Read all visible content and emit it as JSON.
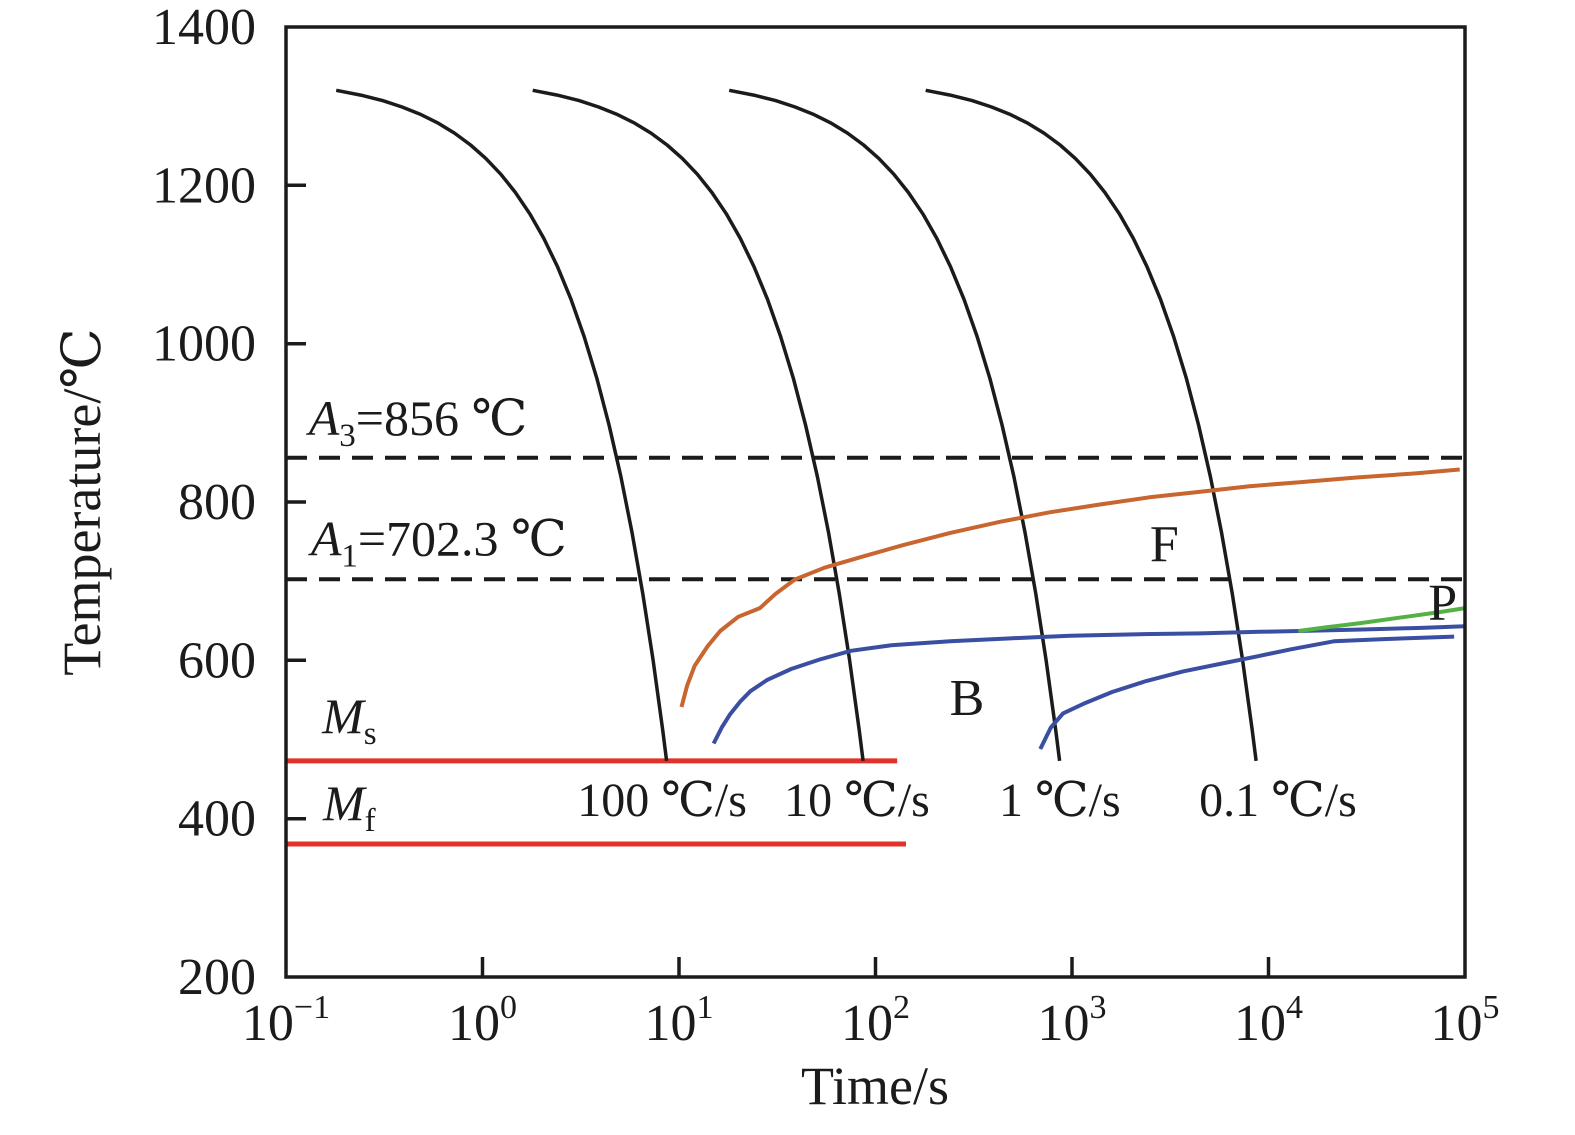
{
  "chart_data": {
    "type": "line",
    "title": "",
    "xlabel": "Time/s",
    "ylabel": "Temperature/℃",
    "x_scale": "log",
    "x_range": [
      0.1,
      100000
    ],
    "y_range": [
      200,
      1400
    ],
    "grid": false,
    "legend": "none",
    "x_ticks": [
      {
        "value": 0.1,
        "label": [
          {
            "t": "10"
          },
          {
            "t": "−1",
            "sup": true
          }
        ]
      },
      {
        "value": 1,
        "label": [
          {
            "t": "10"
          },
          {
            "t": "0",
            "sup": true
          }
        ]
      },
      {
        "value": 10,
        "label": [
          {
            "t": "10"
          },
          {
            "t": "1",
            "sup": true
          }
        ]
      },
      {
        "value": 100,
        "label": [
          {
            "t": "10"
          },
          {
            "t": "2",
            "sup": true
          }
        ]
      },
      {
        "value": 1000,
        "label": [
          {
            "t": "10"
          },
          {
            "t": "3",
            "sup": true
          }
        ]
      },
      {
        "value": 10000,
        "label": [
          {
            "t": "10"
          },
          {
            "t": "4",
            "sup": true
          }
        ]
      },
      {
        "value": 100000,
        "label": [
          {
            "t": "10"
          },
          {
            "t": "5",
            "sup": true
          }
        ]
      }
    ],
    "y_ticks": [
      1400,
      1200,
      1000,
      800,
      600,
      400,
      200
    ],
    "colors": {
      "axis": "#1b1b1b",
      "cooling_curve": "#1b1b1b",
      "dashed_line": "#1b1b1b",
      "ferrite": "#c9652f",
      "bainite": "#3b4fa2",
      "pearlite": "#54b245",
      "martensite_line": "#e23128"
    },
    "reference_lines": [
      {
        "name": "A3",
        "T": 856,
        "style": "dashed",
        "color_key": "dashed_line",
        "t_start": 0.1,
        "t_end": 100000,
        "label": [
          {
            "t": "A",
            "i": true
          },
          {
            "t": "3",
            "sub": true
          },
          {
            "t": "=856 ℃"
          }
        ],
        "label_pos": {
          "t": 0.47,
          "T": 906
        }
      },
      {
        "name": "A1",
        "T": 702.3,
        "style": "dashed",
        "color_key": "dashed_line",
        "t_start": 0.1,
        "t_end": 100000,
        "label": [
          {
            "t": "A",
            "i": true
          },
          {
            "t": "1",
            "sub": true
          },
          {
            "t": "=702.3 ℃"
          }
        ],
        "label_pos": {
          "t": 0.6,
          "T": 754
        }
      },
      {
        "name": "Ms",
        "T": 473,
        "style": "solid",
        "color_key": "martensite_line",
        "t_start": 0.1,
        "t_end": 129,
        "label": [
          {
            "t": "M",
            "i": true
          },
          {
            "t": "s",
            "sub": true
          }
        ],
        "label_pos": {
          "t": 0.21,
          "T": 530
        }
      },
      {
        "name": "Mf",
        "T": 368,
        "style": "solid",
        "color_key": "martensite_line",
        "t_start": 0.1,
        "t_end": 143,
        "label": [
          {
            "t": "M",
            "i": true
          },
          {
            "t": "f",
            "sub": true
          }
        ],
        "label_pos": {
          "t": 0.21,
          "T": 420
        }
      }
    ],
    "cooling_curves": {
      "T0": 1338,
      "T_profile": [
        1320,
        1314,
        1307,
        1299,
        1290,
        1279,
        1266,
        1251,
        1234,
        1214,
        1191,
        1164,
        1133,
        1097,
        1056,
        1009,
        956,
        897,
        832,
        761,
        684,
        601,
        512,
        473
      ],
      "rates": [
        {
          "rate": 100,
          "label": "100 ℃/s",
          "t_end": 8.65,
          "label_pos": {
            "t": 8.2,
            "T": 425
          }
        },
        {
          "rate": 10,
          "label": "10 ℃/s",
          "t_end": 86.5,
          "label_pos": {
            "t": 80.5,
            "T": 425
          }
        },
        {
          "rate": 1,
          "label": "1 ℃/s",
          "t_end": 865,
          "label_pos": {
            "t": 867,
            "T": 425
          }
        },
        {
          "rate": 0.1,
          "label": "0.1 ℃/s",
          "t_end": 8650,
          "label_pos": {
            "t": 11170,
            "T": 425
          }
        }
      ]
    },
    "series": [
      {
        "name": "ferrite-start",
        "label": "F",
        "color_key": "ferrite",
        "label_pos": {
          "t": 2950,
          "T": 748
        },
        "points": [
          [
            10.3,
            541
          ],
          [
            11,
            568
          ],
          [
            12,
            593
          ],
          [
            14,
            618
          ],
          [
            16.2,
            637
          ],
          [
            20,
            655
          ],
          [
            25.8,
            666
          ],
          [
            31,
            684
          ],
          [
            38.8,
            702
          ],
          [
            55,
            717
          ],
          [
            83,
            730
          ],
          [
            140,
            746
          ],
          [
            240,
            761
          ],
          [
            430,
            775
          ],
          [
            770,
            787
          ],
          [
            1400,
            797
          ],
          [
            2480,
            806
          ],
          [
            4500,
            813
          ],
          [
            8000,
            820
          ],
          [
            14400,
            825
          ],
          [
            28000,
            831
          ],
          [
            55000,
            836
          ],
          [
            94000,
            841
          ]
        ]
      },
      {
        "name": "bainite-start",
        "label": "B",
        "color_key": "bainite",
        "label_pos": {
          "t": 292,
          "T": 554
        },
        "points": [
          [
            15,
            495
          ],
          [
            16.5,
            515
          ],
          [
            18.2,
            532
          ],
          [
            20.5,
            548
          ],
          [
            23.1,
            561
          ],
          [
            28,
            575
          ],
          [
            37.2,
            589
          ],
          [
            52,
            601
          ],
          [
            75,
            612
          ],
          [
            120,
            619
          ],
          [
            240,
            624
          ],
          [
            500,
            628
          ],
          [
            980,
            631
          ],
          [
            2200,
            633
          ],
          [
            4500,
            634
          ],
          [
            9000,
            636
          ],
          [
            14200,
            637
          ],
          [
            30000,
            639
          ],
          [
            60000,
            641
          ],
          [
            100000,
            643
          ]
        ]
      },
      {
        "name": "bainite-finish",
        "label": "",
        "color_key": "bainite",
        "label_pos": null,
        "points": [
          [
            690,
            488
          ],
          [
            780,
            515
          ],
          [
            900,
            533
          ],
          [
            1140,
            545
          ],
          [
            1600,
            560
          ],
          [
            2400,
            574
          ],
          [
            3670,
            586
          ],
          [
            5800,
            596
          ],
          [
            8730,
            605
          ],
          [
            13000,
            614
          ],
          [
            21500,
            624
          ],
          [
            40000,
            627
          ],
          [
            88000,
            630
          ]
        ]
      },
      {
        "name": "pearlite-start",
        "label": "P",
        "color_key": "pearlite",
        "label_pos": {
          "t": 77000,
          "T": 674
        },
        "points": [
          [
            14200,
            637
          ],
          [
            20000,
            642
          ],
          [
            29400,
            647
          ],
          [
            50000,
            655
          ],
          [
            75000,
            661
          ],
          [
            100000,
            666
          ]
        ]
      }
    ]
  }
}
